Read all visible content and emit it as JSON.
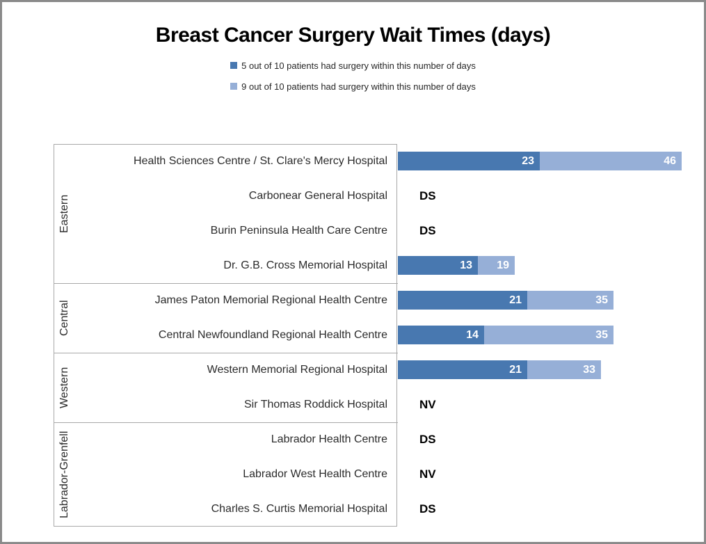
{
  "title": "Breast Cancer Surgery Wait Times (days)",
  "legend": [
    {
      "label": "5 out of 10 patients had surgery within this number of days",
      "color": "#4878B0"
    },
    {
      "label": "9 out of 10 patients had surgery within this number of days",
      "color": "#96AFD7"
    }
  ],
  "colors": {
    "median_bar": "#4878B0",
    "p90_bar": "#96AFD7",
    "bar_value_text": "#ffffff",
    "axis_lines": "#a8a8a8",
    "frame_border": "#8a8a8a",
    "label_text": "#2b2b2b"
  },
  "chart_data": {
    "type": "bar",
    "orientation": "horizontal",
    "stacked": true,
    "title": "Breast Cancer Surgery Wait Times (days)",
    "xlabel": "",
    "ylabel": "",
    "xlim": [
      0,
      46
    ],
    "grid": false,
    "legend_position": "top-center",
    "series": [
      {
        "name": "5 out of 10 patients had surgery within this number of days",
        "color": "#4878B0",
        "field": "p50_days"
      },
      {
        "name": "9 out of 10 patients had surgery within this number of days",
        "color": "#96AFD7",
        "field": "p90_days"
      }
    ],
    "note_codes": [
      "DS",
      "NV"
    ],
    "groups": [
      {
        "region": "Eastern",
        "rows": [
          {
            "hospital": "Health Sciences Centre / St. Clare's Mercy Hospital",
            "p50_days": 23,
            "p90_days": 46
          },
          {
            "hospital": "Carbonear General Hospital",
            "note": "DS"
          },
          {
            "hospital": "Burin Peninsula Health Care Centre",
            "note": "DS"
          },
          {
            "hospital": "Dr. G.B. Cross Memorial Hospital",
            "p50_days": 13,
            "p90_days": 19
          }
        ]
      },
      {
        "region": "Central",
        "rows": [
          {
            "hospital": "James Paton Memorial Regional Health Centre",
            "p50_days": 21,
            "p90_days": 35
          },
          {
            "hospital": "Central Newfoundland Regional Health Centre",
            "p50_days": 14,
            "p90_days": 35
          }
        ]
      },
      {
        "region": "Western",
        "rows": [
          {
            "hospital": "Western Memorial Regional Hospital",
            "p50_days": 21,
            "p90_days": 33
          },
          {
            "hospital": "Sir Thomas Roddick Hospital",
            "note": "NV"
          }
        ]
      },
      {
        "region": "Labrador-Grenfell",
        "rows": [
          {
            "hospital": "Labrador Health Centre",
            "note": "DS"
          },
          {
            "hospital": "Labrador West Health Centre",
            "note": "NV"
          },
          {
            "hospital": "Charles S. Curtis Memorial Hospital",
            "note": "DS"
          }
        ]
      }
    ]
  }
}
